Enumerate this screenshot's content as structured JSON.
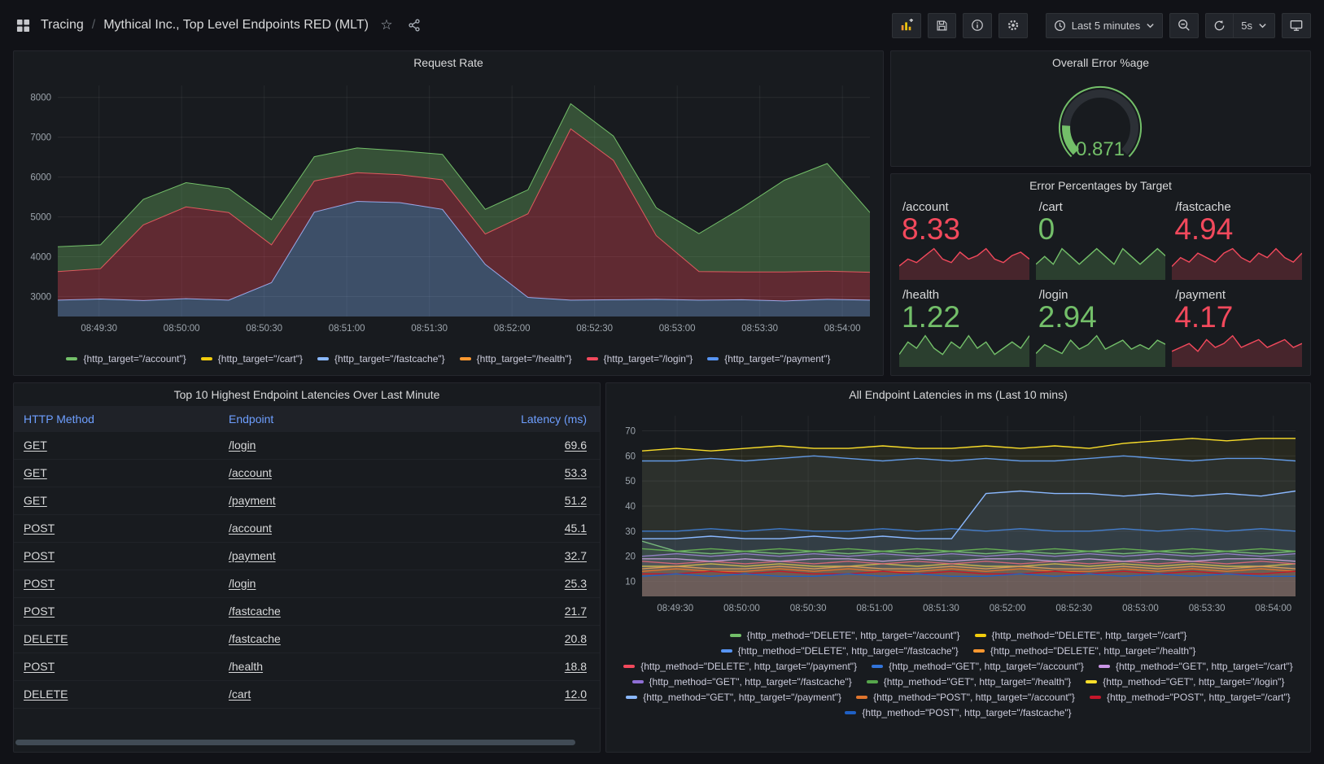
{
  "header": {
    "app_section": "Tracing",
    "breadcrumb_separator": "/",
    "dashboard_title": "Mythical Inc., Top Level Endpoints RED (MLT)",
    "time_range_label": "Last 5 minutes",
    "refresh_interval_label": "5s"
  },
  "request_rate": {
    "title": "Request Rate",
    "chart_data": {
      "type": "area",
      "stacked": true,
      "title": "Request Rate",
      "ylim": [
        2500,
        8300
      ],
      "y_ticks": [
        3000,
        4000,
        5000,
        6000,
        7000,
        8000
      ],
      "x_tick_labels": [
        "08:49:30",
        "08:50:00",
        "08:50:30",
        "08:51:00",
        "08:51:30",
        "08:52:00",
        "08:52:30",
        "08:53:00",
        "08:53:30",
        "08:54:00"
      ],
      "stack_order": [
        5,
        1,
        3,
        2,
        4,
        0
      ],
      "series": [
        {
          "name": "{http_target=\"/account\"}",
          "color": "#73BF69",
          "values": [
            620,
            600,
            640,
            610,
            600,
            630,
            610,
            620,
            600,
            640,
            620,
            600,
            630,
            610,
            700,
            950,
            1600,
            2300,
            2700,
            1500
          ]
        },
        {
          "name": "{http_target=\"/cart\"}",
          "color": "#F2CC0C",
          "values": [
            600,
            620,
            590,
            610,
            600,
            590,
            620,
            600,
            610,
            590,
            600,
            620,
            600,
            590,
            610,
            600,
            590,
            610,
            600,
            600
          ]
        },
        {
          "name": "{http_target=\"/fastcache\"}",
          "color": "#8AB8FF",
          "values": [
            700,
            690,
            720,
            700,
            710,
            1100,
            2900,
            3200,
            3100,
            3000,
            1600,
            750,
            700,
            720,
            690,
            710,
            700,
            690,
            720,
            700
          ]
        },
        {
          "name": "{http_target=\"/health\"}",
          "color": "#FF9830",
          "values": [
            610,
            590,
            600,
            620,
            600,
            610,
            590,
            600,
            620,
            600,
            590,
            610,
            600,
            620,
            590,
            600,
            610,
            590,
            600,
            610
          ]
        },
        {
          "name": "{http_target=\"/login\"}",
          "color": "#F2495C",
          "values": [
            720,
            760,
            1900,
            2300,
            2200,
            950,
            780,
            720,
            700,
            740,
            760,
            2100,
            4300,
            3500,
            1600,
            720,
            700,
            730,
            710,
            700
          ]
        },
        {
          "name": "{http_target=\"/payment\"}",
          "color": "#5794F2",
          "values": [
            1000,
            1040,
            990,
            1020,
            1000,
            1050,
            1010,
            990,
            1030,
            1000,
            1020,
            1000,
            1010,
            990,
            1040,
            1000,
            1020,
            1000,
            1010,
            1000
          ]
        }
      ]
    }
  },
  "overall_error": {
    "title": "Overall Error %age",
    "chart_data": {
      "type": "gauge",
      "value": 0.871,
      "display": "0.871",
      "fraction": 0.18,
      "color": "#73BF69"
    }
  },
  "error_percentages": {
    "title": "Error Percentages by Target",
    "stats": [
      {
        "label": "/account",
        "value": "8.33",
        "color": "#F2495C",
        "spark": [
          4,
          6,
          5,
          7,
          9,
          6,
          5,
          8,
          6,
          7,
          9,
          6,
          5,
          7,
          8,
          6
        ]
      },
      {
        "label": "/cart",
        "value": "0",
        "color": "#73BF69",
        "spark": [
          2,
          3,
          2,
          4,
          3,
          2,
          3,
          4,
          3,
          2,
          4,
          3,
          2,
          3,
          4,
          3
        ]
      },
      {
        "label": "/fastcache",
        "value": "4.94",
        "color": "#F2495C",
        "spark": [
          3,
          5,
          4,
          6,
          5,
          4,
          6,
          7,
          5,
          4,
          6,
          5,
          7,
          5,
          4,
          6
        ]
      },
      {
        "label": "/health",
        "value": "1.22",
        "color": "#73BF69",
        "spark": [
          2,
          4,
          3,
          5,
          3,
          2,
          4,
          3,
          5,
          3,
          4,
          2,
          3,
          4,
          3,
          5
        ]
      },
      {
        "label": "/login",
        "value": "2.94",
        "color": "#73BF69",
        "spark": [
          3,
          5,
          4,
          3,
          6,
          4,
          5,
          7,
          4,
          5,
          6,
          4,
          5,
          4,
          6,
          5
        ]
      },
      {
        "label": "/payment",
        "value": "4.17",
        "color": "#F2495C",
        "spark": [
          4,
          5,
          6,
          4,
          7,
          5,
          6,
          8,
          5,
          6,
          7,
          5,
          6,
          7,
          5,
          6
        ]
      }
    ]
  },
  "latency_table": {
    "title": "Top 10 Highest Endpoint Latencies Over Last Minute",
    "columns": [
      "HTTP Method",
      "Endpoint",
      "Latency (ms)"
    ],
    "rows": [
      [
        "GET",
        "/login",
        "69.6"
      ],
      [
        "GET",
        "/account",
        "53.3"
      ],
      [
        "GET",
        "/payment",
        "51.2"
      ],
      [
        "POST",
        "/account",
        "45.1"
      ],
      [
        "POST",
        "/payment",
        "32.7"
      ],
      [
        "POST",
        "/login",
        "25.3"
      ],
      [
        "POST",
        "/fastcache",
        "21.7"
      ],
      [
        "DELETE",
        "/fastcache",
        "20.8"
      ],
      [
        "POST",
        "/health",
        "18.8"
      ],
      [
        "DELETE",
        "/cart",
        "12.0"
      ]
    ]
  },
  "all_latencies": {
    "title": "All Endpoint Latencies in ms (Last 10 mins)",
    "chart_data": {
      "type": "line",
      "stacked": false,
      "title": "All Endpoint Latencies in ms (Last 10 mins)",
      "ylim": [
        4,
        76
      ],
      "y_ticks": [
        10,
        20,
        30,
        40,
        50,
        60,
        70
      ],
      "x_tick_labels": [
        "08:49:30",
        "08:50:00",
        "08:50:30",
        "08:51:00",
        "08:51:30",
        "08:52:00",
        "08:52:30",
        "08:53:00",
        "08:53:30",
        "08:54:00"
      ],
      "series": [
        {
          "name": "{http_method=\"DELETE\", http_target=\"/account\"}",
          "color": "#73BF69",
          "values": [
            26,
            22,
            21,
            22,
            21,
            22,
            21,
            22,
            21,
            22,
            21,
            22,
            21,
            22,
            21,
            22,
            21,
            22,
            21,
            22
          ]
        },
        {
          "name": "{http_method=\"DELETE\", http_target=\"/cart\"}",
          "color": "#F2CC0C",
          "values": [
            16,
            16,
            17,
            16,
            17,
            16,
            16,
            17,
            16,
            17,
            16,
            16,
            17,
            16,
            17,
            16,
            17,
            16,
            16,
            17
          ]
        },
        {
          "name": "{http_method=\"DELETE\", http_target=\"/fastcache\"}",
          "color": "#5794F2",
          "values": [
            58,
            58,
            59,
            58,
            59,
            60,
            59,
            58,
            59,
            58,
            59,
            58,
            58,
            59,
            60,
            59,
            58,
            59,
            59,
            58
          ]
        },
        {
          "name": "{http_method=\"DELETE\", http_target=\"/health\"}",
          "color": "#FF9830",
          "values": [
            15,
            16,
            15,
            15,
            16,
            15,
            16,
            15,
            15,
            16,
            15,
            16,
            15,
            15,
            16,
            15,
            16,
            15,
            16,
            15
          ]
        },
        {
          "name": "{http_method=\"DELETE\", http_target=\"/payment\"}",
          "color": "#F2495C",
          "values": [
            18,
            17,
            18,
            17,
            18,
            17,
            18,
            17,
            18,
            17,
            18,
            17,
            18,
            17,
            18,
            17,
            18,
            17,
            18,
            17
          ]
        },
        {
          "name": "{http_method=\"GET\", http_target=\"/account\"}",
          "color": "#3274D9",
          "values": [
            30,
            30,
            31,
            30,
            31,
            30,
            30,
            31,
            30,
            31,
            30,
            31,
            30,
            30,
            31,
            30,
            31,
            30,
            31,
            30
          ]
        },
        {
          "name": "{http_method=\"GET\", http_target=\"/cart\"}",
          "color": "#CA95E5",
          "values": [
            19,
            19,
            18,
            19,
            18,
            19,
            19,
            18,
            19,
            18,
            19,
            19,
            18,
            19,
            18,
            19,
            18,
            19,
            19,
            18
          ]
        },
        {
          "name": "{http_method=\"GET\", http_target=\"/fastcache\"}",
          "color": "#8F6FD6",
          "values": [
            20,
            21,
            20,
            21,
            20,
            21,
            20,
            21,
            20,
            21,
            20,
            21,
            20,
            21,
            20,
            21,
            20,
            21,
            20,
            21
          ]
        },
        {
          "name": "{http_method=\"GET\", http_target=\"/health\"}",
          "color": "#56A64B",
          "values": [
            23,
            22,
            23,
            22,
            23,
            22,
            23,
            22,
            23,
            22,
            23,
            22,
            23,
            22,
            23,
            22,
            23,
            22,
            23,
            22
          ]
        },
        {
          "name": "{http_method=\"GET\", http_target=\"/login\"}",
          "color": "#FADE2A",
          "values": [
            62,
            63,
            62,
            63,
            64,
            63,
            63,
            64,
            63,
            63,
            64,
            63,
            64,
            63,
            65,
            66,
            67,
            66,
            67,
            67
          ]
        },
        {
          "name": "{http_method=\"GET\", http_target=\"/payment\"}",
          "color": "#8AB8FF",
          "values": [
            27,
            27,
            28,
            27,
            27,
            28,
            27,
            28,
            27,
            27,
            45,
            46,
            45,
            45,
            44,
            45,
            44,
            45,
            44,
            46
          ]
        },
        {
          "name": "{http_method=\"POST\", http_target=\"/account\"}",
          "color": "#E0752D",
          "values": [
            14,
            15,
            14,
            14,
            15,
            14,
            15,
            14,
            14,
            15,
            14,
            15,
            14,
            14,
            15,
            14,
            15,
            14,
            15,
            14
          ]
        },
        {
          "name": "{http_method=\"POST\", http_target=\"/cart\"}",
          "color": "#C4162A",
          "values": [
            13,
            13,
            14,
            13,
            14,
            13,
            13,
            14,
            13,
            14,
            13,
            13,
            14,
            13,
            14,
            13,
            14,
            13,
            13,
            14
          ]
        },
        {
          "name": "{http_method=\"POST\", http_target=\"/fastcache\"}",
          "color": "#1F60C4",
          "values": [
            12,
            13,
            12,
            13,
            12,
            12,
            13,
            12,
            13,
            12,
            12,
            13,
            12,
            13,
            12,
            13,
            12,
            13,
            12,
            12
          ]
        }
      ]
    }
  }
}
